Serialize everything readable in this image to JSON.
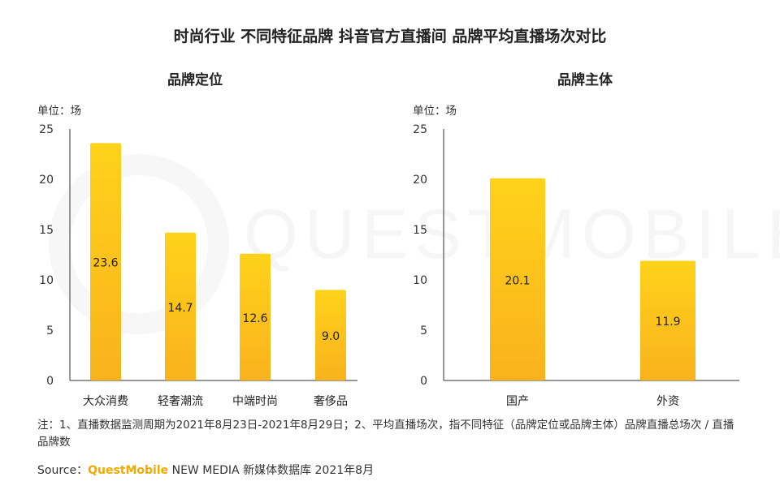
{
  "title": "时尚行业 不同特征品牌 抖音官方直播间 品牌平均直播场次对比",
  "watermark": "QUESTMOBILE",
  "chart_data": [
    {
      "type": "bar",
      "title": "品牌定位",
      "unit_label": "单位：场",
      "categories": [
        "大众消费",
        "轻奢潮流",
        "中端时尚",
        "奢侈品"
      ],
      "values": [
        23.6,
        14.7,
        12.6,
        9.0
      ],
      "value_labels": [
        "23.6",
        "14.7",
        "12.6",
        "9.0"
      ],
      "yticks": [
        "0",
        "5",
        "10",
        "15",
        "20",
        "25"
      ],
      "ylim": [
        0,
        25
      ],
      "grid": false,
      "bar_color": "#fbbf16"
    },
    {
      "type": "bar",
      "title": "品牌主体",
      "unit_label": "单位：场",
      "categories": [
        "国产",
        "外资"
      ],
      "values": [
        20.1,
        11.9
      ],
      "value_labels": [
        "20.1",
        "11.9"
      ],
      "yticks": [
        "0",
        "5",
        "10",
        "15",
        "20",
        "25"
      ],
      "ylim": [
        0,
        25
      ],
      "grid": false,
      "bar_color": "#fbbf16"
    }
  ],
  "note": "注：1、直播数据监测周期为2021年8月23日-2021年8月29日；2、平均直播场次，指不同特征（品牌定位或品牌主体）品牌直播总场次 / 直播品牌数",
  "source": {
    "prefix": "Source：",
    "brand": "QuestMobile",
    "rest": " NEW MEDIA 新媒体数据库 2021年8月"
  }
}
